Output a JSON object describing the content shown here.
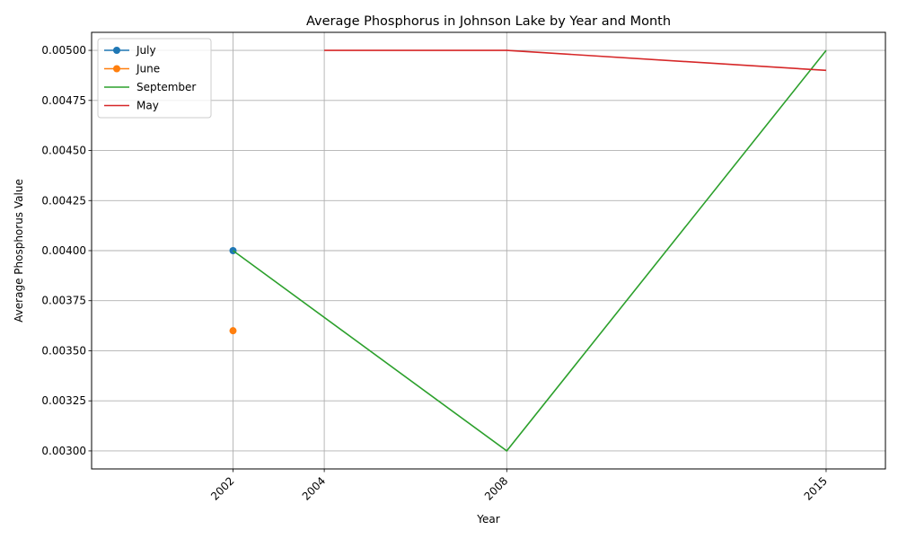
{
  "chart_data": {
    "type": "line",
    "title": "Average Phosphorus in Johnson Lake by Year and Month",
    "xlabel": "Year",
    "ylabel": "Average Phosphorus Value",
    "xlim": [
      1998.9,
      2016.3
    ],
    "ylim": [
      0.00291,
      0.00509
    ],
    "x_ticks": [
      2002,
      2004,
      2008,
      2015
    ],
    "y_ticks": [
      "0.00300",
      "0.00325",
      "0.00350",
      "0.00375",
      "0.00400",
      "0.00425",
      "0.00450",
      "0.00475",
      "0.00500"
    ],
    "grid": true,
    "legend_position": "top-left",
    "series": [
      {
        "name": "July",
        "color": "#1f77b4",
        "marker": "circle",
        "x": [
          2002
        ],
        "y": [
          0.004
        ]
      },
      {
        "name": "June",
        "color": "#ff7f0e",
        "marker": "circle",
        "x": [
          2002
        ],
        "y": [
          0.0036
        ]
      },
      {
        "name": "September",
        "color": "#2ca02c",
        "marker": "none",
        "x": [
          2002,
          2008,
          2015
        ],
        "y": [
          0.004,
          0.003,
          0.005
        ]
      },
      {
        "name": "May",
        "color": "#d62728",
        "marker": "none",
        "x": [
          2004,
          2008,
          2015
        ],
        "y": [
          0.005,
          0.005,
          0.0049
        ]
      }
    ]
  }
}
